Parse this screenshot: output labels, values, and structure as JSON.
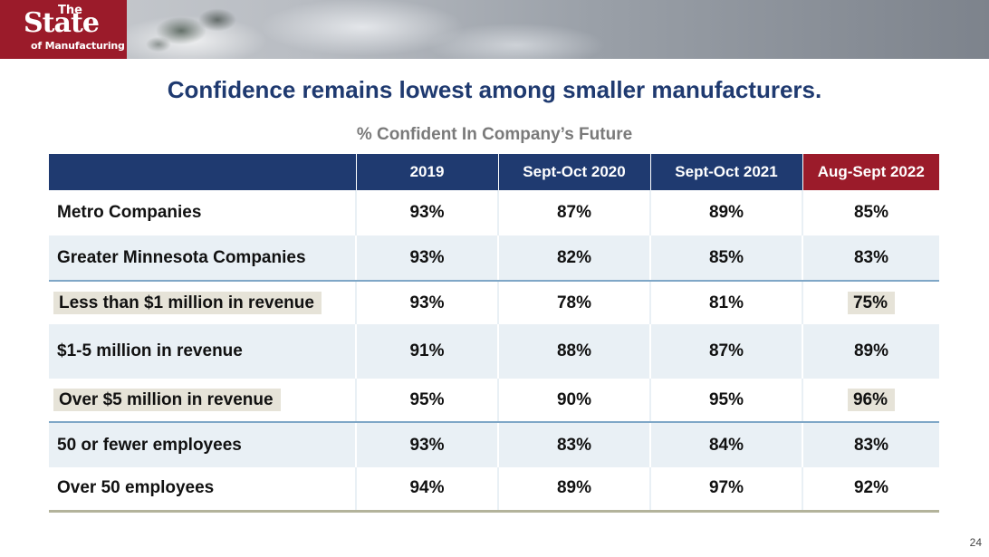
{
  "logo": {
    "line1": "The",
    "line2": "State",
    "line3": "of Manufacturing"
  },
  "title": "Confidence remains lowest among smaller manufacturers.",
  "chart_data": {
    "type": "table",
    "subtitle": "% Confident In Company’s Future",
    "columns": [
      "2019",
      "Sept-Oct 2020",
      "Sept-Oct 2021",
      "Aug-Sept 2022"
    ],
    "rows": [
      {
        "label": "Metro Companies",
        "values": [
          "93%",
          "87%",
          "89%",
          "85%"
        ]
      },
      {
        "label": "Greater Minnesota Companies",
        "values": [
          "93%",
          "82%",
          "85%",
          "83%"
        ]
      },
      {
        "label": "Less than $1 million in revenue",
        "values": [
          "93%",
          "78%",
          "81%",
          "75%"
        ],
        "highlighted": true
      },
      {
        "label": "$1-5 million in revenue",
        "values": [
          "91%",
          "88%",
          "87%",
          "89%"
        ]
      },
      {
        "label": "Over $5 million in revenue",
        "values": [
          "95%",
          "90%",
          "95%",
          "96%"
        ],
        "highlighted": true
      },
      {
        "label": "50 or fewer employees",
        "values": [
          "93%",
          "83%",
          "84%",
          "83%"
        ]
      },
      {
        "label": "Over 50 employees",
        "values": [
          "94%",
          "89%",
          "97%",
          "92%"
        ]
      }
    ]
  },
  "colors": {
    "header": "#1f3a70",
    "accent": "#9b1b2a",
    "title": "#1f3a70",
    "band": "#e9f0f5",
    "highlight": "#e6e3d8"
  },
  "page_number": "24"
}
